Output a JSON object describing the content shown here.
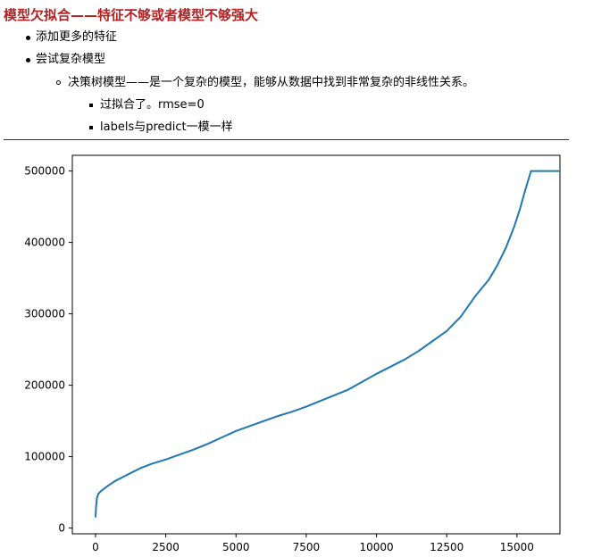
{
  "colors": {
    "heading": "#b22222",
    "text": "#000000",
    "line": "#1f77b4"
  },
  "heading": "模型欠拟合——特征不够或者模型不够强大",
  "notes": {
    "item1": "添加更多的特征",
    "item2": "尝试复杂模型",
    "sub1": "决策树模型——是一个复杂的模型，能够从数据中找到非常复杂的非线性关系。",
    "subsub1": "过拟合了。rmse=0",
    "subsub2": "labels与predict一模一样"
  },
  "chart_data": {
    "type": "line",
    "title": "",
    "xlabel": "",
    "ylabel": "",
    "xlim": [
      -825,
      16530
    ],
    "ylim": [
      -8000,
      522000
    ],
    "xticks": [
      0,
      2500,
      5000,
      7500,
      10000,
      12500,
      15000
    ],
    "xtick_labels": [
      "0",
      "2500",
      "5000",
      "7500",
      "10000",
      "12500",
      "15000"
    ],
    "yticks": [
      0,
      100000,
      200000,
      300000,
      400000,
      500000
    ],
    "ytick_labels": [
      "0",
      "100000",
      "200000",
      "300000",
      "400000",
      "500000"
    ],
    "grid": false,
    "legend": "none",
    "series": [
      {
        "x": [
          0,
          20,
          50,
          100,
          200,
          400,
          700,
          1000,
          1300,
          1600,
          2000,
          2500,
          3000,
          3500,
          4000,
          4500,
          5000,
          5500,
          6000,
          6500,
          7000,
          7500,
          8000,
          8500,
          9000,
          9500,
          10000,
          10500,
          11000,
          11500,
          12000,
          12500,
          13000,
          13500,
          14000,
          14300,
          14600,
          14900,
          15100,
          15300,
          15500,
          15700,
          16000,
          16500
        ],
        "y": [
          14999,
          30000,
          42000,
          48000,
          52000,
          58000,
          66000,
          72000,
          78000,
          84000,
          90000,
          96000,
          103000,
          110000,
          118000,
          127000,
          136000,
          143000,
          150000,
          157000,
          163000,
          170000,
          178000,
          186000,
          194000,
          205000,
          216000,
          226000,
          236000,
          248000,
          262000,
          276000,
          296000,
          324000,
          348000,
          368000,
          392000,
          422000,
          446000,
          474000,
          500000,
          500001,
          500001,
          500001
        ]
      }
    ]
  }
}
